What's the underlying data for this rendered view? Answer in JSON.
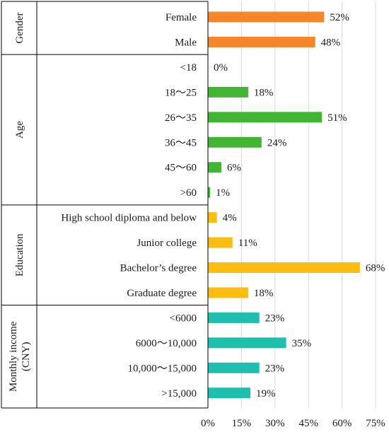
{
  "chart_data": {
    "type": "bar",
    "orientation": "horizontal",
    "x_ticks": [
      "0%",
      "15%",
      "30%",
      "45%",
      "60%",
      "75%"
    ],
    "xlim": [
      0,
      75
    ],
    "grid": true,
    "groups": [
      {
        "name": "Gender",
        "color": "#f5862a",
        "categories": [
          "Female",
          "Male"
        ],
        "values": [
          52,
          48
        ],
        "labels": [
          "52%",
          "48%"
        ]
      },
      {
        "name": "Age",
        "color": "#43b535",
        "categories": [
          "<18",
          "18～25",
          "26～35",
          "36～45",
          "45～60",
          ">60"
        ],
        "values": [
          0,
          18,
          51,
          24,
          6,
          1
        ],
        "labels": [
          "0%",
          "18%",
          "51%",
          "24%",
          "6%",
          "1%"
        ]
      },
      {
        "name": "Education",
        "color": "#fbbd12",
        "categories": [
          "High school diploma and below",
          "Junior college",
          "Bachelor’s degree",
          "Graduate degree"
        ],
        "values": [
          4,
          11,
          68,
          18
        ],
        "labels": [
          "4%",
          "11%",
          "68%",
          "18%"
        ]
      },
      {
        "name": "Monthly income",
        "name_line2": "(CNY)",
        "color": "#1fbfb0",
        "categories": [
          "<6000",
          "6000～10,000",
          "10,000～15,000",
          ">15,000"
        ],
        "values": [
          23,
          35,
          23,
          19
        ],
        "labels": [
          "23%",
          "35%",
          "23%",
          "19%"
        ]
      }
    ]
  }
}
